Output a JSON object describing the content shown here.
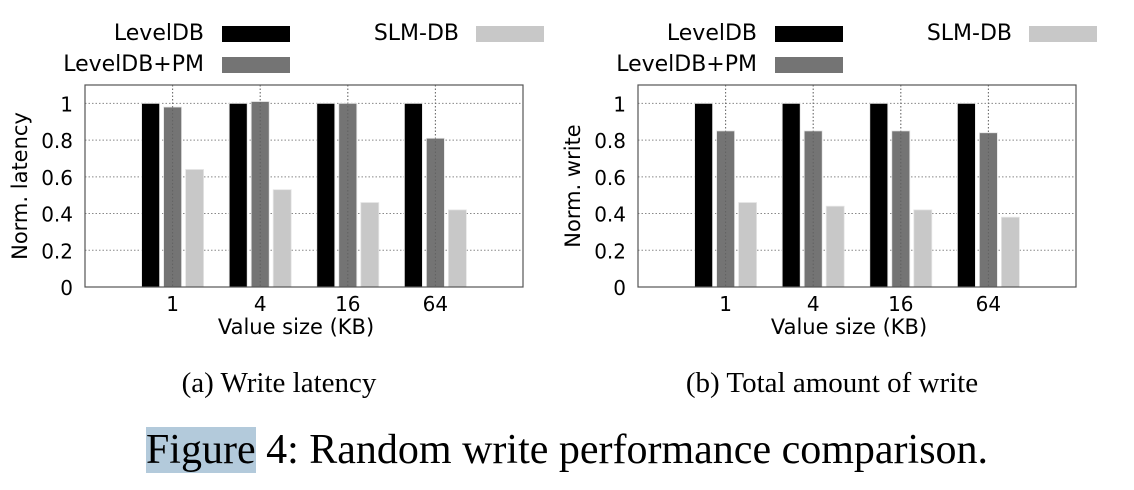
{
  "legend": {
    "series_labels": [
      "LevelDB",
      "LevelDB+PM",
      "SLM-DB"
    ]
  },
  "colors": {
    "LevelDB": "#000000",
    "LevelDB+PM": "#747474",
    "SLM-DB": "#c8c8c8",
    "highlight": "#b3cadb"
  },
  "chart_data": [
    {
      "type": "bar",
      "caption": "(a)  Write latency",
      "categories": [
        "1",
        "4",
        "16",
        "64"
      ],
      "xlabel": "Value size (KB)",
      "ylabel": "Norm. latency",
      "ylim": [
        0,
        1.1
      ],
      "yticks": [
        "0",
        "0.2",
        "0.4",
        "0.6",
        "0.8",
        "1"
      ],
      "grid": true,
      "legend_position": "top",
      "series": [
        {
          "name": "LevelDB",
          "values": [
            1.0,
            1.0,
            1.0,
            1.0
          ]
        },
        {
          "name": "LevelDB+PM",
          "values": [
            0.98,
            1.01,
            1.0,
            0.81
          ]
        },
        {
          "name": "SLM-DB",
          "values": [
            0.64,
            0.53,
            0.46,
            0.42
          ]
        }
      ]
    },
    {
      "type": "bar",
      "caption": "(b)  Total amount of write",
      "categories": [
        "1",
        "4",
        "16",
        "64"
      ],
      "xlabel": "Value size (KB)",
      "ylabel": "Norm. write",
      "ylim": [
        0,
        1.1
      ],
      "yticks": [
        "0",
        "0.2",
        "0.4",
        "0.6",
        "0.8",
        "1"
      ],
      "grid": true,
      "legend_position": "top",
      "series": [
        {
          "name": "LevelDB",
          "values": [
            1.0,
            1.0,
            1.0,
            1.0
          ]
        },
        {
          "name": "LevelDB+PM",
          "values": [
            0.85,
            0.85,
            0.85,
            0.84
          ]
        },
        {
          "name": "SLM-DB",
          "values": [
            0.46,
            0.44,
            0.42,
            0.38
          ]
        }
      ]
    }
  ],
  "figure_caption": {
    "label": "Figure",
    "text": " 4: Random write performance comparison."
  }
}
